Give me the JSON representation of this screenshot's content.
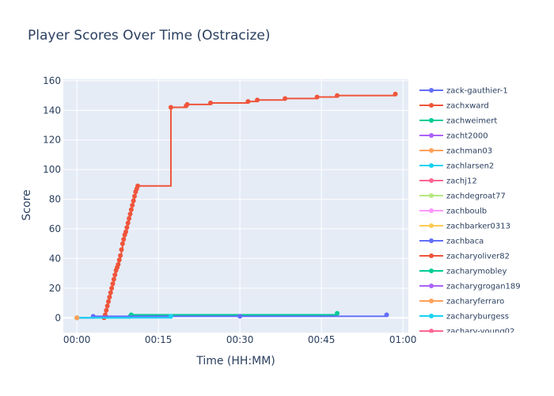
{
  "chart_data": {
    "type": "line",
    "title": "Player Scores Over Time (Ostracize)",
    "xlabel": "Time (HH:MM)",
    "ylabel": "Score",
    "xlim_minutes": [
      -2.5,
      61
    ],
    "ylim": [
      -10,
      161
    ],
    "x_ticks": [
      {
        "value": 0,
        "label": "00:00"
      },
      {
        "value": 15,
        "label": "00:15"
      },
      {
        "value": 30,
        "label": "00:30"
      },
      {
        "value": 45,
        "label": "00:45"
      },
      {
        "value": 60,
        "label": "01:00"
      }
    ],
    "y_ticks": [
      0,
      20,
      40,
      60,
      80,
      100,
      120,
      140,
      160
    ],
    "grid": true,
    "legend_position": "right",
    "legend_entries": [
      {
        "name": "zack-gauthier-1",
        "color": "#636efa"
      },
      {
        "name": "zachxward",
        "color": "#ef553b"
      },
      {
        "name": "zachweimert",
        "color": "#00cc96"
      },
      {
        "name": "zacht2000",
        "color": "#ab63fa"
      },
      {
        "name": "zachman03",
        "color": "#ffa15a"
      },
      {
        "name": "zachlarsen2",
        "color": "#19d3f3"
      },
      {
        "name": "zachj12",
        "color": "#ff6692"
      },
      {
        "name": "zachdegroat77",
        "color": "#b6e880"
      },
      {
        "name": "zachboulb",
        "color": "#ff97ff"
      },
      {
        "name": "zachbarker0313",
        "color": "#fecb52"
      },
      {
        "name": "zachbaca",
        "color": "#636efa"
      },
      {
        "name": "zacharyoliver82",
        "color": "#ef553b"
      },
      {
        "name": "zacharymobley",
        "color": "#00cc96"
      },
      {
        "name": "zacharygrogan189",
        "color": "#ab63fa"
      },
      {
        "name": "zacharyferraro",
        "color": "#ffa15a"
      },
      {
        "name": "zacharyburgess",
        "color": "#19d3f3"
      },
      {
        "name": "zachary-young02",
        "color": "#ff6692"
      }
    ],
    "series": [
      {
        "name": "zachxward",
        "color": "#ef553b",
        "shape": "hv",
        "points": [
          [
            5.0,
            0
          ],
          [
            5.2,
            2
          ],
          [
            5.4,
            5
          ],
          [
            5.6,
            8
          ],
          [
            5.8,
            11
          ],
          [
            6.0,
            14
          ],
          [
            6.2,
            17
          ],
          [
            6.4,
            20
          ],
          [
            6.6,
            23
          ],
          [
            6.8,
            26
          ],
          [
            7.0,
            29
          ],
          [
            7.2,
            32
          ],
          [
            7.4,
            34
          ],
          [
            7.6,
            36
          ],
          [
            7.8,
            39
          ],
          [
            8.0,
            42
          ],
          [
            8.2,
            46
          ],
          [
            8.4,
            50
          ],
          [
            8.6,
            53
          ],
          [
            8.8,
            56
          ],
          [
            9.0,
            58
          ],
          [
            9.2,
            61
          ],
          [
            9.4,
            64
          ],
          [
            9.6,
            67
          ],
          [
            9.8,
            70
          ],
          [
            10.0,
            73
          ],
          [
            10.2,
            76
          ],
          [
            10.4,
            79
          ],
          [
            10.6,
            82
          ],
          [
            10.8,
            85
          ],
          [
            11.0,
            87
          ],
          [
            11.2,
            89
          ],
          [
            17.3,
            142
          ],
          [
            20.1,
            143
          ],
          [
            20.3,
            144
          ],
          [
            24.6,
            145
          ],
          [
            31.5,
            146
          ],
          [
            33.2,
            147
          ],
          [
            38.3,
            148
          ],
          [
            44.2,
            149
          ],
          [
            47.9,
            150
          ],
          [
            58.6,
            151
          ]
        ]
      },
      {
        "name": "zachweimert",
        "color": "#00cc96",
        "shape": "hv",
        "points": [
          [
            0,
            0
          ],
          [
            9.8,
            1
          ],
          [
            10.0,
            2
          ],
          [
            47.9,
            3
          ]
        ]
      },
      {
        "name": "zack-gauthier-1",
        "color": "#636efa",
        "shape": "hv",
        "points": [
          [
            0,
            0
          ],
          [
            3.0,
            1
          ],
          [
            30.0,
            1
          ],
          [
            57.0,
            2
          ]
        ]
      },
      {
        "name": "zachlarsen2",
        "color": "#19d3f3",
        "shape": "hv",
        "points": [
          [
            0,
            0
          ],
          [
            17.3,
            1
          ]
        ]
      },
      {
        "name": "zachbarker0313",
        "color": "#fecb52",
        "shape": "hv",
        "points": [
          [
            0,
            0
          ]
        ]
      },
      {
        "name": "zachman03",
        "color": "#ffa15a",
        "shape": "hv",
        "points": [
          [
            0,
            0
          ]
        ]
      }
    ]
  }
}
